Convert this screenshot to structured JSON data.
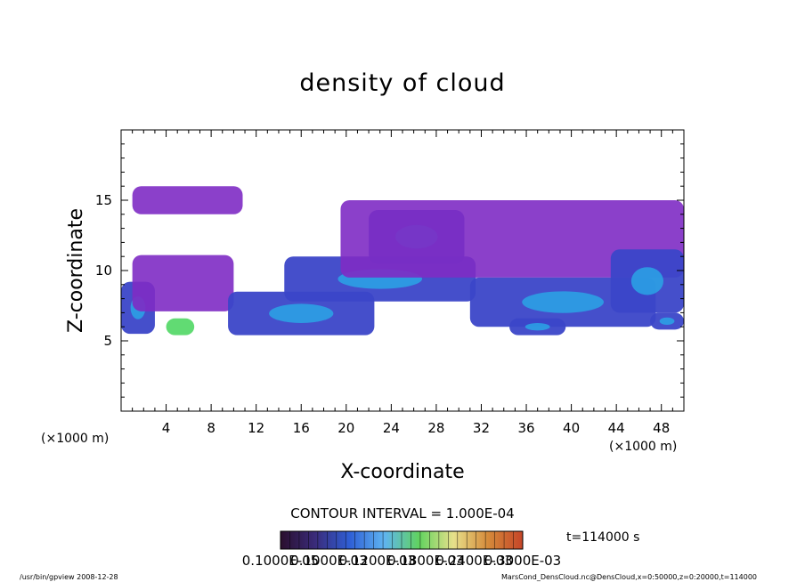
{
  "chart_data": {
    "type": "heatmap",
    "title": "density of cloud",
    "xlabel": "X-coordinate",
    "ylabel": "Z-coordinate",
    "x_unit": "(×1000 m)",
    "y_unit": "(×1000 m)",
    "xlim": [
      0,
      50
    ],
    "ylim": [
      0,
      20
    ],
    "x_ticks": [
      "4",
      "8",
      "12",
      "16",
      "20",
      "24",
      "28",
      "32",
      "36",
      "40",
      "44",
      "48"
    ],
    "y_ticks": [
      "5",
      "10",
      "15"
    ],
    "contour_interval": "CONTOUR INTERVAL = 1.000E-04",
    "time_label": "t=114000 s",
    "colorbar_labels": [
      "0.1000E-05",
      "0.1000E-03",
      "0.1200E-03",
      "0.1800E-03",
      "0.2400E-03",
      "0.3000E-03"
    ],
    "colorbar_colors": [
      "#2a0f2d",
      "#3a2b7a",
      "#2f5fd6",
      "#5fb4f0",
      "#61d35f",
      "#e7e08a",
      "#d58a3a",
      "#c64528"
    ],
    "cloud_regions": [
      {
        "x": [
          0,
          3
        ],
        "z": [
          5.5,
          9.2
        ],
        "level": "low-mid"
      },
      {
        "x": [
          1,
          10
        ],
        "z": [
          7.1,
          11.1
        ],
        "level": "low"
      },
      {
        "x": [
          4,
          6.5
        ],
        "z": [
          5.4,
          6.6
        ],
        "level": "peak"
      },
      {
        "x": [
          1,
          10.8
        ],
        "z": [
          14.0,
          16.0
        ],
        "level": "low"
      },
      {
        "x": [
          9.5,
          22.5
        ],
        "z": [
          5.4,
          8.5
        ],
        "level": "low-mid"
      },
      {
        "x": [
          14.5,
          31.5
        ],
        "z": [
          7.8,
          11.0
        ],
        "level": "mid"
      },
      {
        "x": [
          22,
          30.5
        ],
        "z": [
          10.5,
          14.3
        ],
        "level": "mid"
      },
      {
        "x": [
          19.5,
          50
        ],
        "z": [
          9.5,
          15.0
        ],
        "level": "low"
      },
      {
        "x": [
          31,
          47.5
        ],
        "z": [
          6.0,
          9.5
        ],
        "level": "low-mid"
      },
      {
        "x": [
          34.5,
          39.5
        ],
        "z": [
          5.4,
          6.6
        ],
        "level": "low-mid"
      },
      {
        "x": [
          43.5,
          50
        ],
        "z": [
          7.0,
          11.5
        ],
        "level": "mid"
      },
      {
        "x": [
          47,
          50
        ],
        "z": [
          5.8,
          7.0
        ],
        "level": "low-mid"
      }
    ]
  },
  "footer": {
    "left": "/usr/bin/gpview  2008-12-28",
    "right": "MarsCond_DensCloud.nc@DensCloud,x=0:50000,z=0:20000,t=114000"
  },
  "colors": {
    "background": "#ffffff",
    "frame": "#000000",
    "low": "#7e2bc4",
    "mid": "#3b46c8",
    "high": "#2aa5e6",
    "peak": "#58d96b"
  }
}
